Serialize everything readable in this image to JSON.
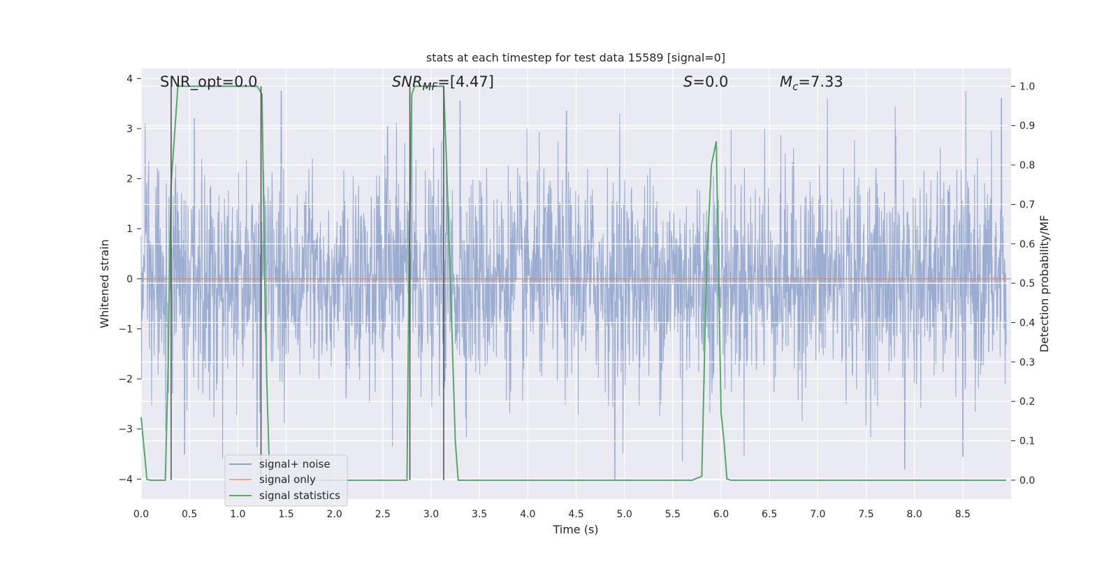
{
  "chart_data": {
    "type": "line",
    "title": "stats at each timestep for test data 15589 [signal=0]",
    "xlabel": "Time (s)",
    "ylabel_left": "Whitened strain",
    "ylabel_right": "Detection probability/MF",
    "xlim": [
      0.0,
      9.0
    ],
    "ylim_left": [
      -4.4,
      4.2
    ],
    "ylim_right": [
      -0.048,
      1.045
    ],
    "x_ticks": [
      "0.0",
      "0.5",
      "1.0",
      "1.5",
      "2.0",
      "2.5",
      "3.0",
      "3.5",
      "4.0",
      "4.5",
      "5.0",
      "5.5",
      "6.0",
      "6.5",
      "7.0",
      "7.5",
      "8.0",
      "8.5"
    ],
    "y_ticks_left": [
      "4",
      "3",
      "2",
      "1",
      "0",
      "−1",
      "−2",
      "−3",
      "−4"
    ],
    "y_ticks_right": [
      "1.0",
      "0.9",
      "0.8",
      "0.7",
      "0.6",
      "0.5",
      "0.4",
      "0.3",
      "0.2",
      "0.1",
      "0.0"
    ],
    "grid": true,
    "legend_position": "lower-left",
    "annotations": {
      "snr_opt": "SNR_opt=0.0",
      "snr_mf_main": "SNR",
      "snr_mf_sub": "MF",
      "snr_mf_value": "=[4.47]",
      "s_symbol": "S",
      "s_value": "=0.0",
      "mc_main": "M",
      "mc_sub": "c",
      "mc_value": "=7.33"
    },
    "series": [
      {
        "name": "signal+ noise",
        "color": "#8da1cb",
        "axis": "left",
        "description_values": "whitened noise, approx. zero-mean with std ~1, t = 0 to 9 s",
        "envelope_peaks": [
          {
            "x": 0.04,
            "y": 3.1
          },
          {
            "x": 0.55,
            "y": 3.2
          },
          {
            "x": 1.45,
            "y": 3.75
          },
          {
            "x": 2.55,
            "y": 3.05
          },
          {
            "x": 2.8,
            "y": 3.55
          },
          {
            "x": 3.3,
            "y": 3.55
          },
          {
            "x": 4.4,
            "y": 3.35
          },
          {
            "x": 4.95,
            "y": 3.3
          },
          {
            "x": 6.45,
            "y": 3.0
          },
          {
            "x": 7.1,
            "y": 3.6
          },
          {
            "x": 7.8,
            "y": 3.45
          },
          {
            "x": 8.9,
            "y": 3.6
          }
        ],
        "envelope_troughs": [
          {
            "x": 0.45,
            "y": -3.5
          },
          {
            "x": 1.2,
            "y": -3.35
          },
          {
            "x": 2.6,
            "y": -3.35
          },
          {
            "x": 4.9,
            "y": -4.0
          },
          {
            "x": 5.6,
            "y": -3.65
          },
          {
            "x": 7.9,
            "y": -3.8
          },
          {
            "x": 8.5,
            "y": -3.55
          }
        ]
      },
      {
        "name": "signal only",
        "color": "#dd8452",
        "axis": "left",
        "x": [
          0.0,
          9.0
        ],
        "values": [
          0.0,
          0.0
        ]
      },
      {
        "name": "signal statistics",
        "color": "#55a868",
        "axis": "right",
        "x": [
          0.0,
          0.06,
          0.1,
          0.25,
          0.28,
          0.31,
          0.38,
          1.2,
          1.25,
          1.28,
          1.3,
          1.33,
          2.75,
          2.77,
          2.8,
          2.83,
          3.13,
          3.16,
          3.2,
          3.25,
          3.28,
          5.7,
          5.8,
          5.85,
          5.9,
          5.95,
          6.0,
          6.03,
          6.06,
          6.1,
          8.95
        ],
        "values": [
          0.16,
          0.002,
          0.0,
          0.0,
          0.3,
          0.75,
          1.0,
          1.0,
          0.98,
          0.5,
          0.25,
          0.0,
          0.0,
          0.5,
          0.98,
          1.0,
          1.0,
          0.8,
          0.5,
          0.1,
          0.0,
          0.0,
          0.01,
          0.55,
          0.8,
          0.86,
          0.17,
          0.1,
          0.003,
          0.0,
          0.0
        ]
      }
    ],
    "vertical_markers": {
      "color": "#555555",
      "x": [
        0.31,
        1.24,
        2.78,
        3.13
      ]
    }
  }
}
